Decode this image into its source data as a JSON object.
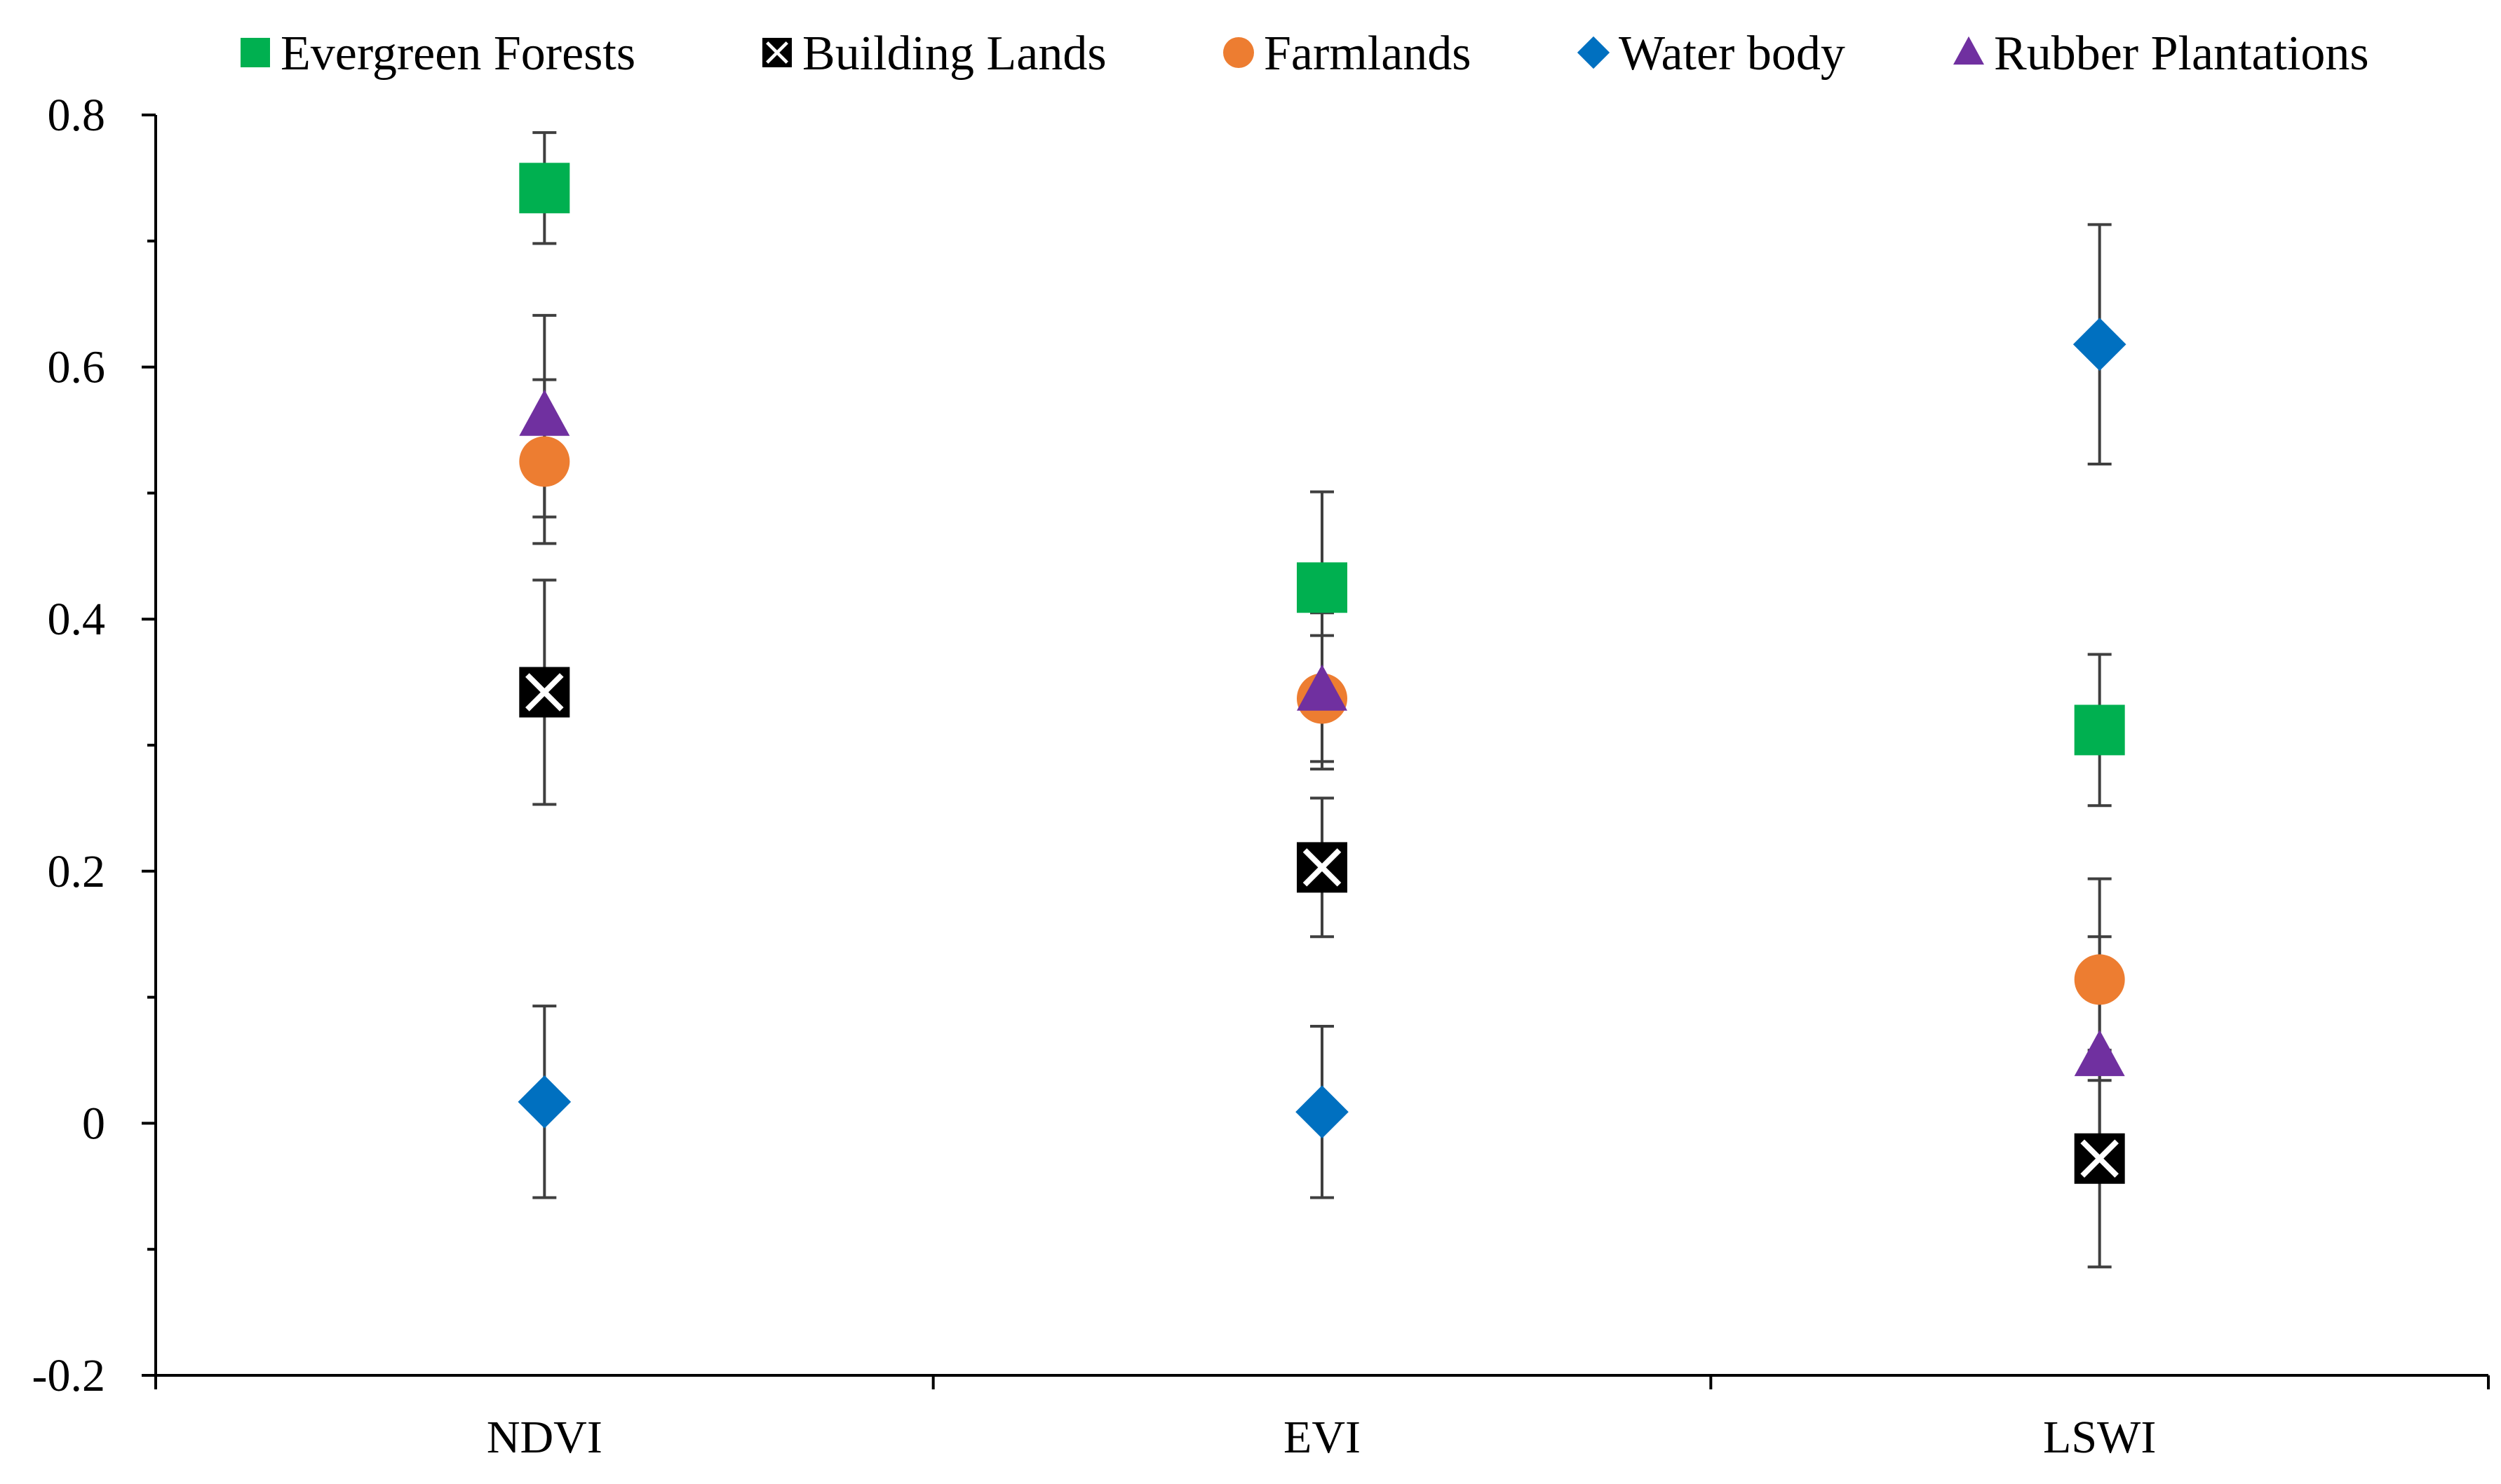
{
  "chart_data": {
    "type": "scatter",
    "title": "",
    "xlabel": "",
    "ylabel": "",
    "categories": [
      "NDVI",
      "EVI",
      "LSWI"
    ],
    "ylim": [
      -0.2,
      0.8
    ],
    "y_ticks": [
      "-0.2",
      "0",
      "0.2",
      "0.4",
      "0.6",
      "0.8"
    ],
    "grid": false,
    "legend_position": "top",
    "series": [
      {
        "name": "Evergreen Forests",
        "marker": "square",
        "color": "#00b050",
        "values": [
          0.742,
          0.425,
          0.312
        ],
        "errors": [
          0.044,
          0.076,
          0.06
        ]
      },
      {
        "name": "Building Lands",
        "marker": "square-x",
        "color": "#000000",
        "values": [
          0.342,
          0.203,
          -0.028
        ],
        "errors": [
          0.089,
          0.055,
          0.086
        ]
      },
      {
        "name": "Farmlands",
        "marker": "circle",
        "color": "#ed7d31",
        "values": [
          0.525,
          0.337,
          0.114
        ],
        "errors": [
          0.065,
          0.05,
          0.08
        ]
      },
      {
        "name": "Water body",
        "marker": "diamond",
        "color": "#0070c0",
        "values": [
          0.017,
          0.009,
          0.618
        ],
        "errors": [
          0.076,
          0.068,
          0.095
        ]
      },
      {
        "name": "Rubber Plantations",
        "marker": "triangle",
        "color": "#7030a0",
        "values": [
          0.561,
          0.343,
          0.053
        ],
        "errors": [
          0.08,
          0.062,
          0.095
        ]
      }
    ]
  }
}
